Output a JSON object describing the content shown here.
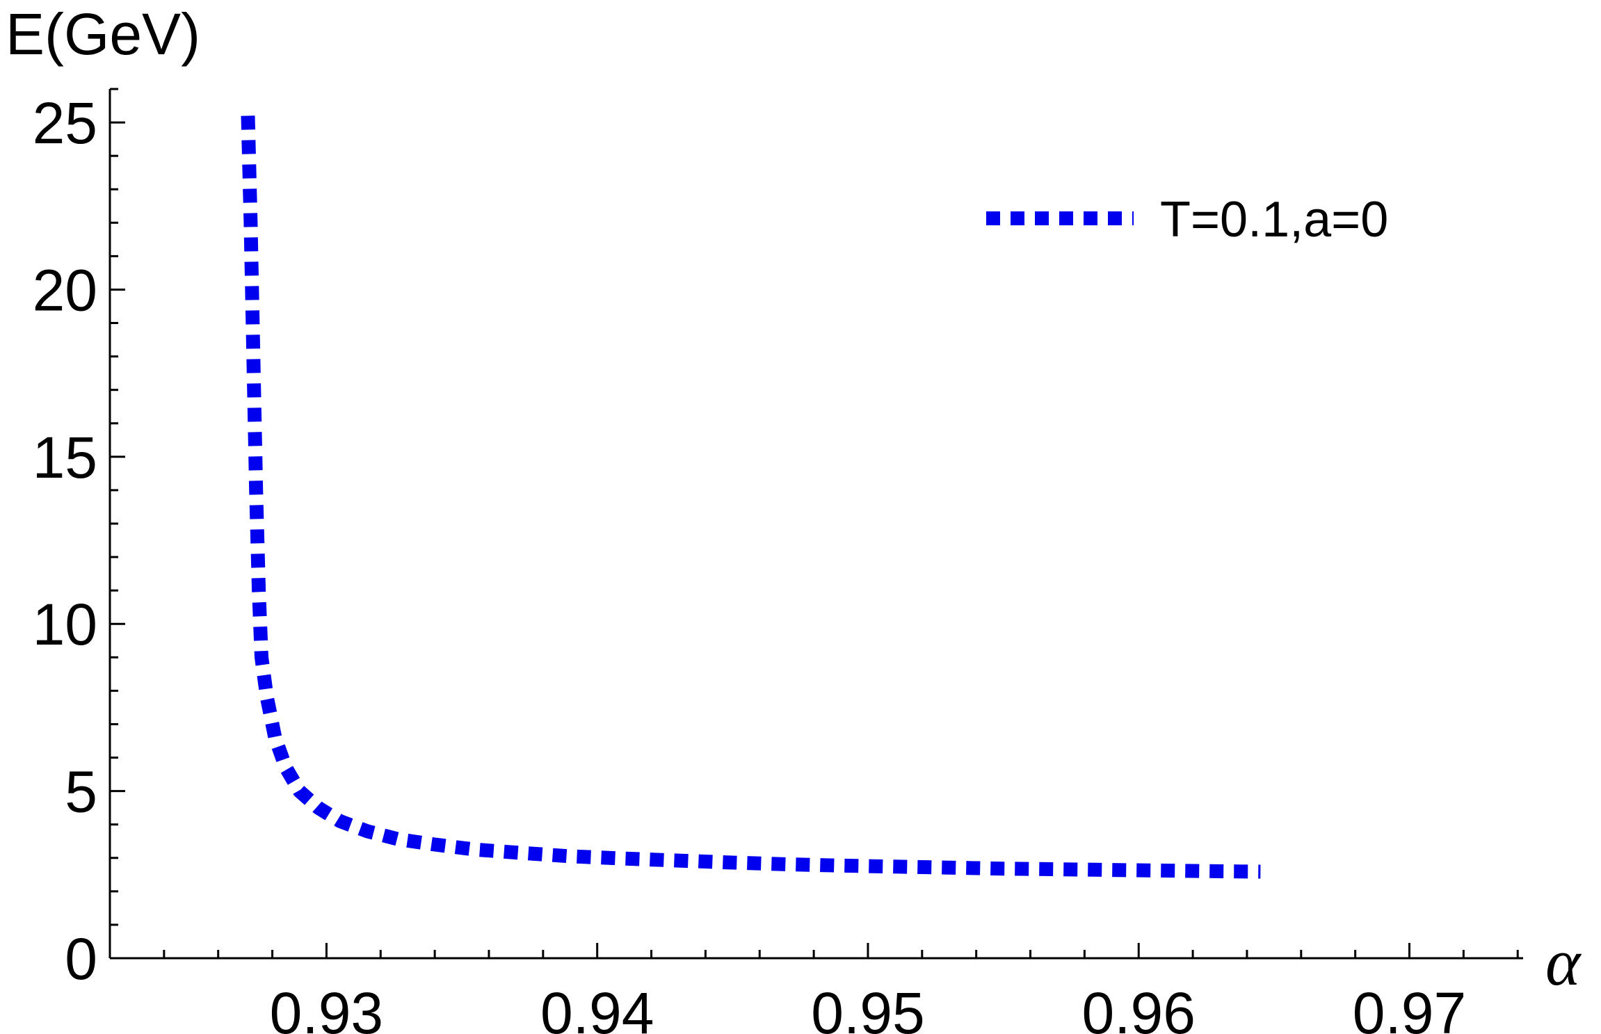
{
  "chart_data": {
    "type": "line",
    "xlabel": "α",
    "ylabel": "E(GeV)",
    "xlim": [
      0.922,
      0.9742
    ],
    "ylim": [
      0,
      26
    ],
    "xticks": [
      0.93,
      0.94,
      0.95,
      0.96,
      0.97
    ],
    "xtick_labels": [
      "0.93",
      "0.94",
      "0.95",
      "0.96",
      "0.97"
    ],
    "yticks": [
      0,
      5,
      10,
      15,
      20,
      25
    ],
    "ytick_labels": [
      "0",
      "5",
      "10",
      "15",
      "20",
      "25"
    ],
    "legend_position": "top-right",
    "grid": false,
    "series": [
      {
        "name": "T=0.1,a=0",
        "color": "#0000ee",
        "style": "dotted",
        "x": [
          0.9271,
          0.9272,
          0.9273,
          0.9274,
          0.9275,
          0.9276,
          0.9278,
          0.9281,
          0.9285,
          0.929,
          0.9297,
          0.9305,
          0.9315,
          0.9327,
          0.934,
          0.9355,
          0.9372,
          0.939,
          0.941,
          0.943,
          0.945,
          0.947,
          0.949,
          0.951,
          0.953,
          0.955,
          0.957,
          0.959,
          0.961,
          0.963,
          0.9645
        ],
        "y": [
          25.2,
          22,
          18,
          14,
          11,
          9,
          7.8,
          6.6,
          5.7,
          5.0,
          4.5,
          4.1,
          3.8,
          3.55,
          3.4,
          3.25,
          3.15,
          3.05,
          2.98,
          2.92,
          2.86,
          2.81,
          2.77,
          2.74,
          2.71,
          2.68,
          2.66,
          2.64,
          2.62,
          2.6,
          2.59
        ]
      }
    ]
  }
}
